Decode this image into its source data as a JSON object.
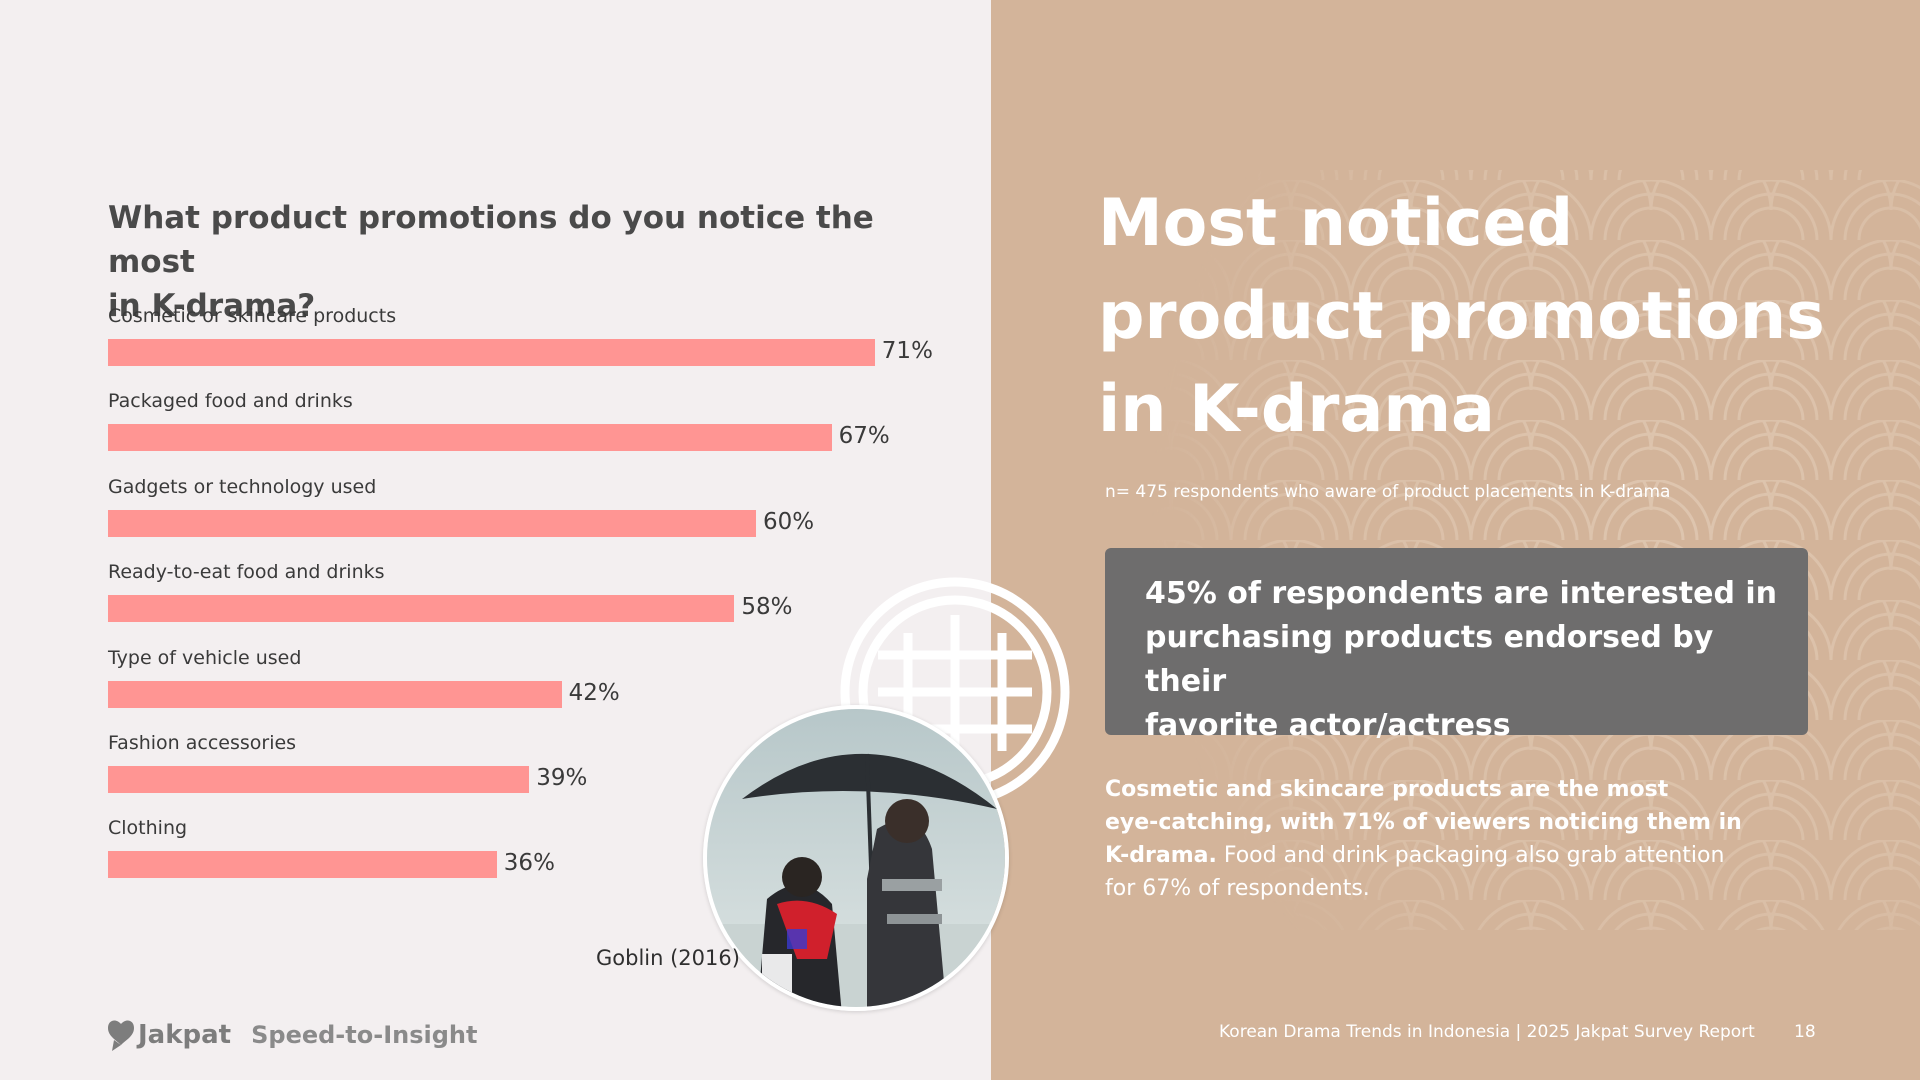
{
  "question": {
    "line1": "What product promotions do you notice the most",
    "line2": "in K-drama?"
  },
  "chart_data": {
    "type": "bar",
    "orientation": "horizontal",
    "title": "What product promotions do you notice the most in K-drama?",
    "categories": [
      "Cosmetic or skincare products",
      "Packaged food and drinks",
      "Gadgets or technology used",
      "Ready-to-eat food and drinks",
      "Type of vehicle used",
      "Fashion accessories",
      "Clothing"
    ],
    "values": [
      71,
      67,
      60,
      58,
      42,
      39,
      36
    ],
    "value_labels": [
      "71%",
      "67%",
      "60%",
      "58%",
      "42%",
      "39%",
      "36%"
    ],
    "unit": "%",
    "xlim": [
      0,
      75
    ],
    "grid": false,
    "bar_color": "#ff9593"
  },
  "photo": {
    "caption": "Goblin (2016)"
  },
  "brand": {
    "name": "Jakpat",
    "tagline": "Speed-to-Insight"
  },
  "headline": {
    "line1": "Most noticed",
    "line2": "product promotions",
    "line3": "in K-drama"
  },
  "sample_note": "n= 475 respondents who aware of product placements in K-drama",
  "callout": {
    "line1": "45% of respondents are interested in",
    "line2": "purchasing products endorsed by their",
    "line3": "favorite actor/actress"
  },
  "summary": {
    "bold_line1": "Cosmetic and skincare products are the most",
    "bold_line2": "eye-catching, with 71% of viewers noticing them in",
    "bold_line3": "K-drama.",
    "normal_line3": " Food and drink packaging also grab attention",
    "normal_line4": "for 67% of respondents."
  },
  "footer": {
    "report": "Korean Drama Trends in Indonesia | 2025 Jakpat Survey Report",
    "page": "18"
  },
  "colors": {
    "left_bg": "#f3eff0",
    "right_bg": "#d3b49a",
    "callout_bg": "#6e6d6d",
    "bar": "#ff9593"
  }
}
